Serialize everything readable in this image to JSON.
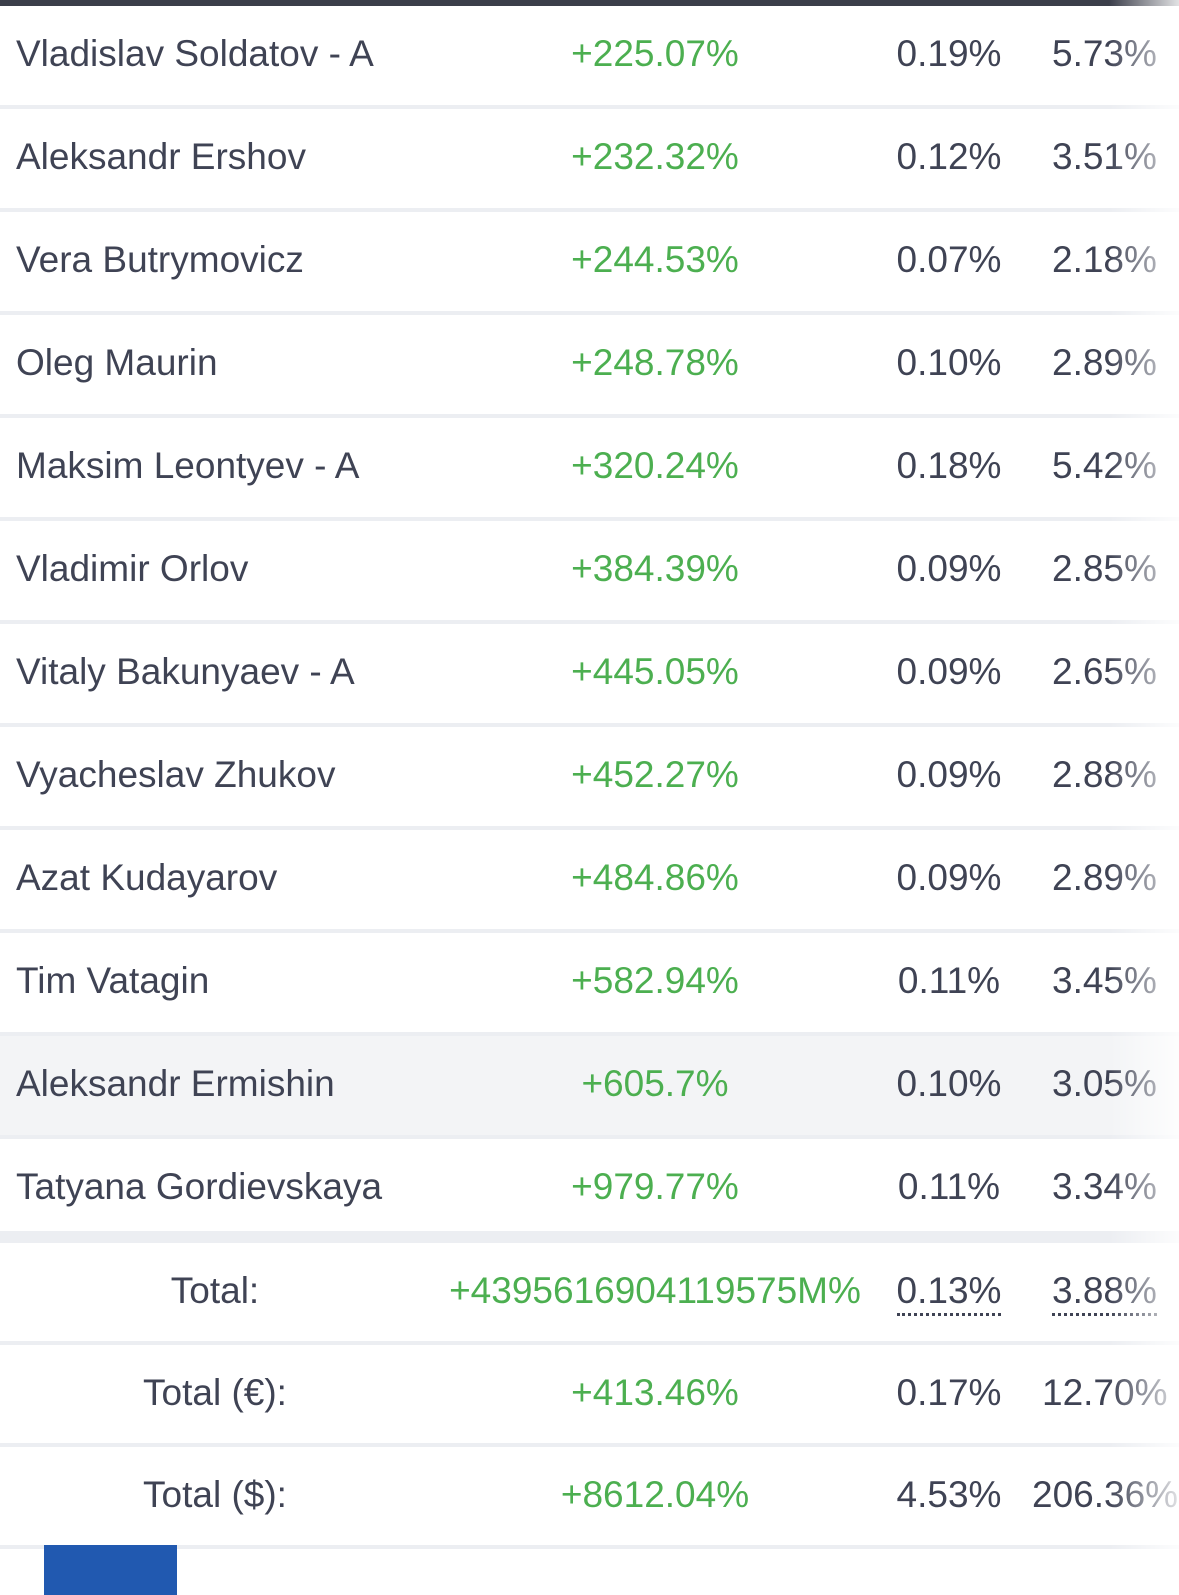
{
  "rows": [
    {
      "name": "Vladislav Soldatov - A",
      "gain": "+225.07%",
      "v1": "0.19%",
      "v2": "5.73%"
    },
    {
      "name": "Aleksandr Ershov",
      "gain": "+232.32%",
      "v1": "0.12%",
      "v2": "3.51%"
    },
    {
      "name": "Vera Butrymovicz",
      "gain": "+244.53%",
      "v1": "0.07%",
      "v2": "2.18%"
    },
    {
      "name": "Oleg Maurin",
      "gain": "+248.78%",
      "v1": "0.10%",
      "v2": "2.89%"
    },
    {
      "name": "Maksim Leontyev - A",
      "gain": "+320.24%",
      "v1": "0.18%",
      "v2": "5.42%"
    },
    {
      "name": "Vladimir Orlov",
      "gain": "+384.39%",
      "v1": "0.09%",
      "v2": "2.85%"
    },
    {
      "name": "Vitaly Bakunyaev - A",
      "gain": "+445.05%",
      "v1": "0.09%",
      "v2": "2.65%"
    },
    {
      "name": "Vyacheslav Zhukov",
      "gain": "+452.27%",
      "v1": "0.09%",
      "v2": "2.88%"
    },
    {
      "name": "Azat Kudayarov",
      "gain": "+484.86%",
      "v1": "0.09%",
      "v2": "2.89%"
    },
    {
      "name": "Tim Vatagin",
      "gain": "+582.94%",
      "v1": "0.11%",
      "v2": "3.45%"
    },
    {
      "name": "Aleksandr Ermishin",
      "gain": "+605.7%",
      "v1": "0.10%",
      "v2": "3.05%"
    },
    {
      "name": "Tatyana Gordievskaya",
      "gain": "+979.77%",
      "v1": "0.11%",
      "v2": "3.34%"
    }
  ],
  "totals": [
    {
      "label": "Total:",
      "gain": "+4395616904119575M%",
      "v1": "0.13%",
      "v2": "3.88%"
    },
    {
      "label": "Total (€):",
      "gain": "+413.46%",
      "v1": "0.17%",
      "v2": "12.70%"
    },
    {
      "label": "Total ($):",
      "gain": "+8612.04%",
      "v1": "4.53%",
      "v2": "206.36%"
    }
  ],
  "colors": {
    "positive": "#4caf50",
    "accent": "#2159b0"
  }
}
